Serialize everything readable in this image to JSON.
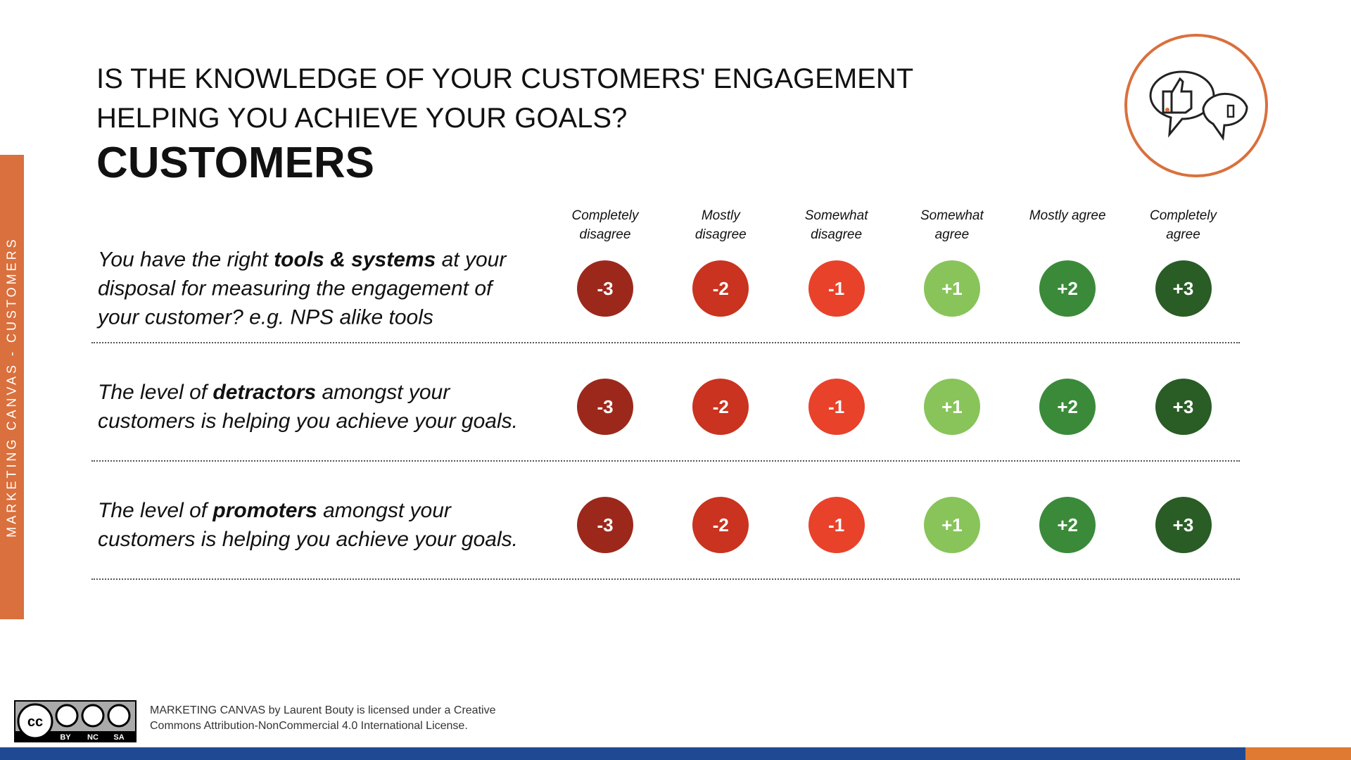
{
  "side_label": "MARKETING CANVAS - CUSTOMERS",
  "header": {
    "title_lines": [
      "IS THE KNOWLEDGE OF YOUR CUSTOMERS' ENGAGEMENT",
      "HELPING YOU ACHIEVE YOUR GOALS?"
    ],
    "subtitle": "CUSTOMERS"
  },
  "scale": [
    {
      "label": "Completely disagree",
      "score": "-3",
      "color": "#9c281c"
    },
    {
      "label": "Mostly disagree",
      "score": "-2",
      "color": "#c9331f"
    },
    {
      "label": "Somewhat disagree",
      "score": "-1",
      "color": "#e8422b"
    },
    {
      "label": "Somewhat agree",
      "score": "+1",
      "color": "#88c45a"
    },
    {
      "label": "Mostly agree",
      "score": "+2",
      "color": "#3a8a3a"
    },
    {
      "label": "Completely agree",
      "score": "+3",
      "color": "#2a5c26"
    }
  ],
  "statements": [
    {
      "before": "You have the right ",
      "bold": "tools & systems",
      "after": " at your disposal for measuring the engagement of your customer? e.g. NPS alike tools"
    },
    {
      "before": "The level of ",
      "bold": "detractors",
      "after": " amongst your customers is helping you achieve your goals."
    },
    {
      "before": "The level of ",
      "bold": "promoters",
      "after": " amongst your customers is helping you achieve your goals."
    }
  ],
  "footer": {
    "badge": [
      "BY",
      "NC",
      "SA"
    ],
    "license": "MARKETING CANVAS by Laurent Bouty is licensed under a Creative Commons Attribution-NonCommercial 4.0 International License."
  }
}
